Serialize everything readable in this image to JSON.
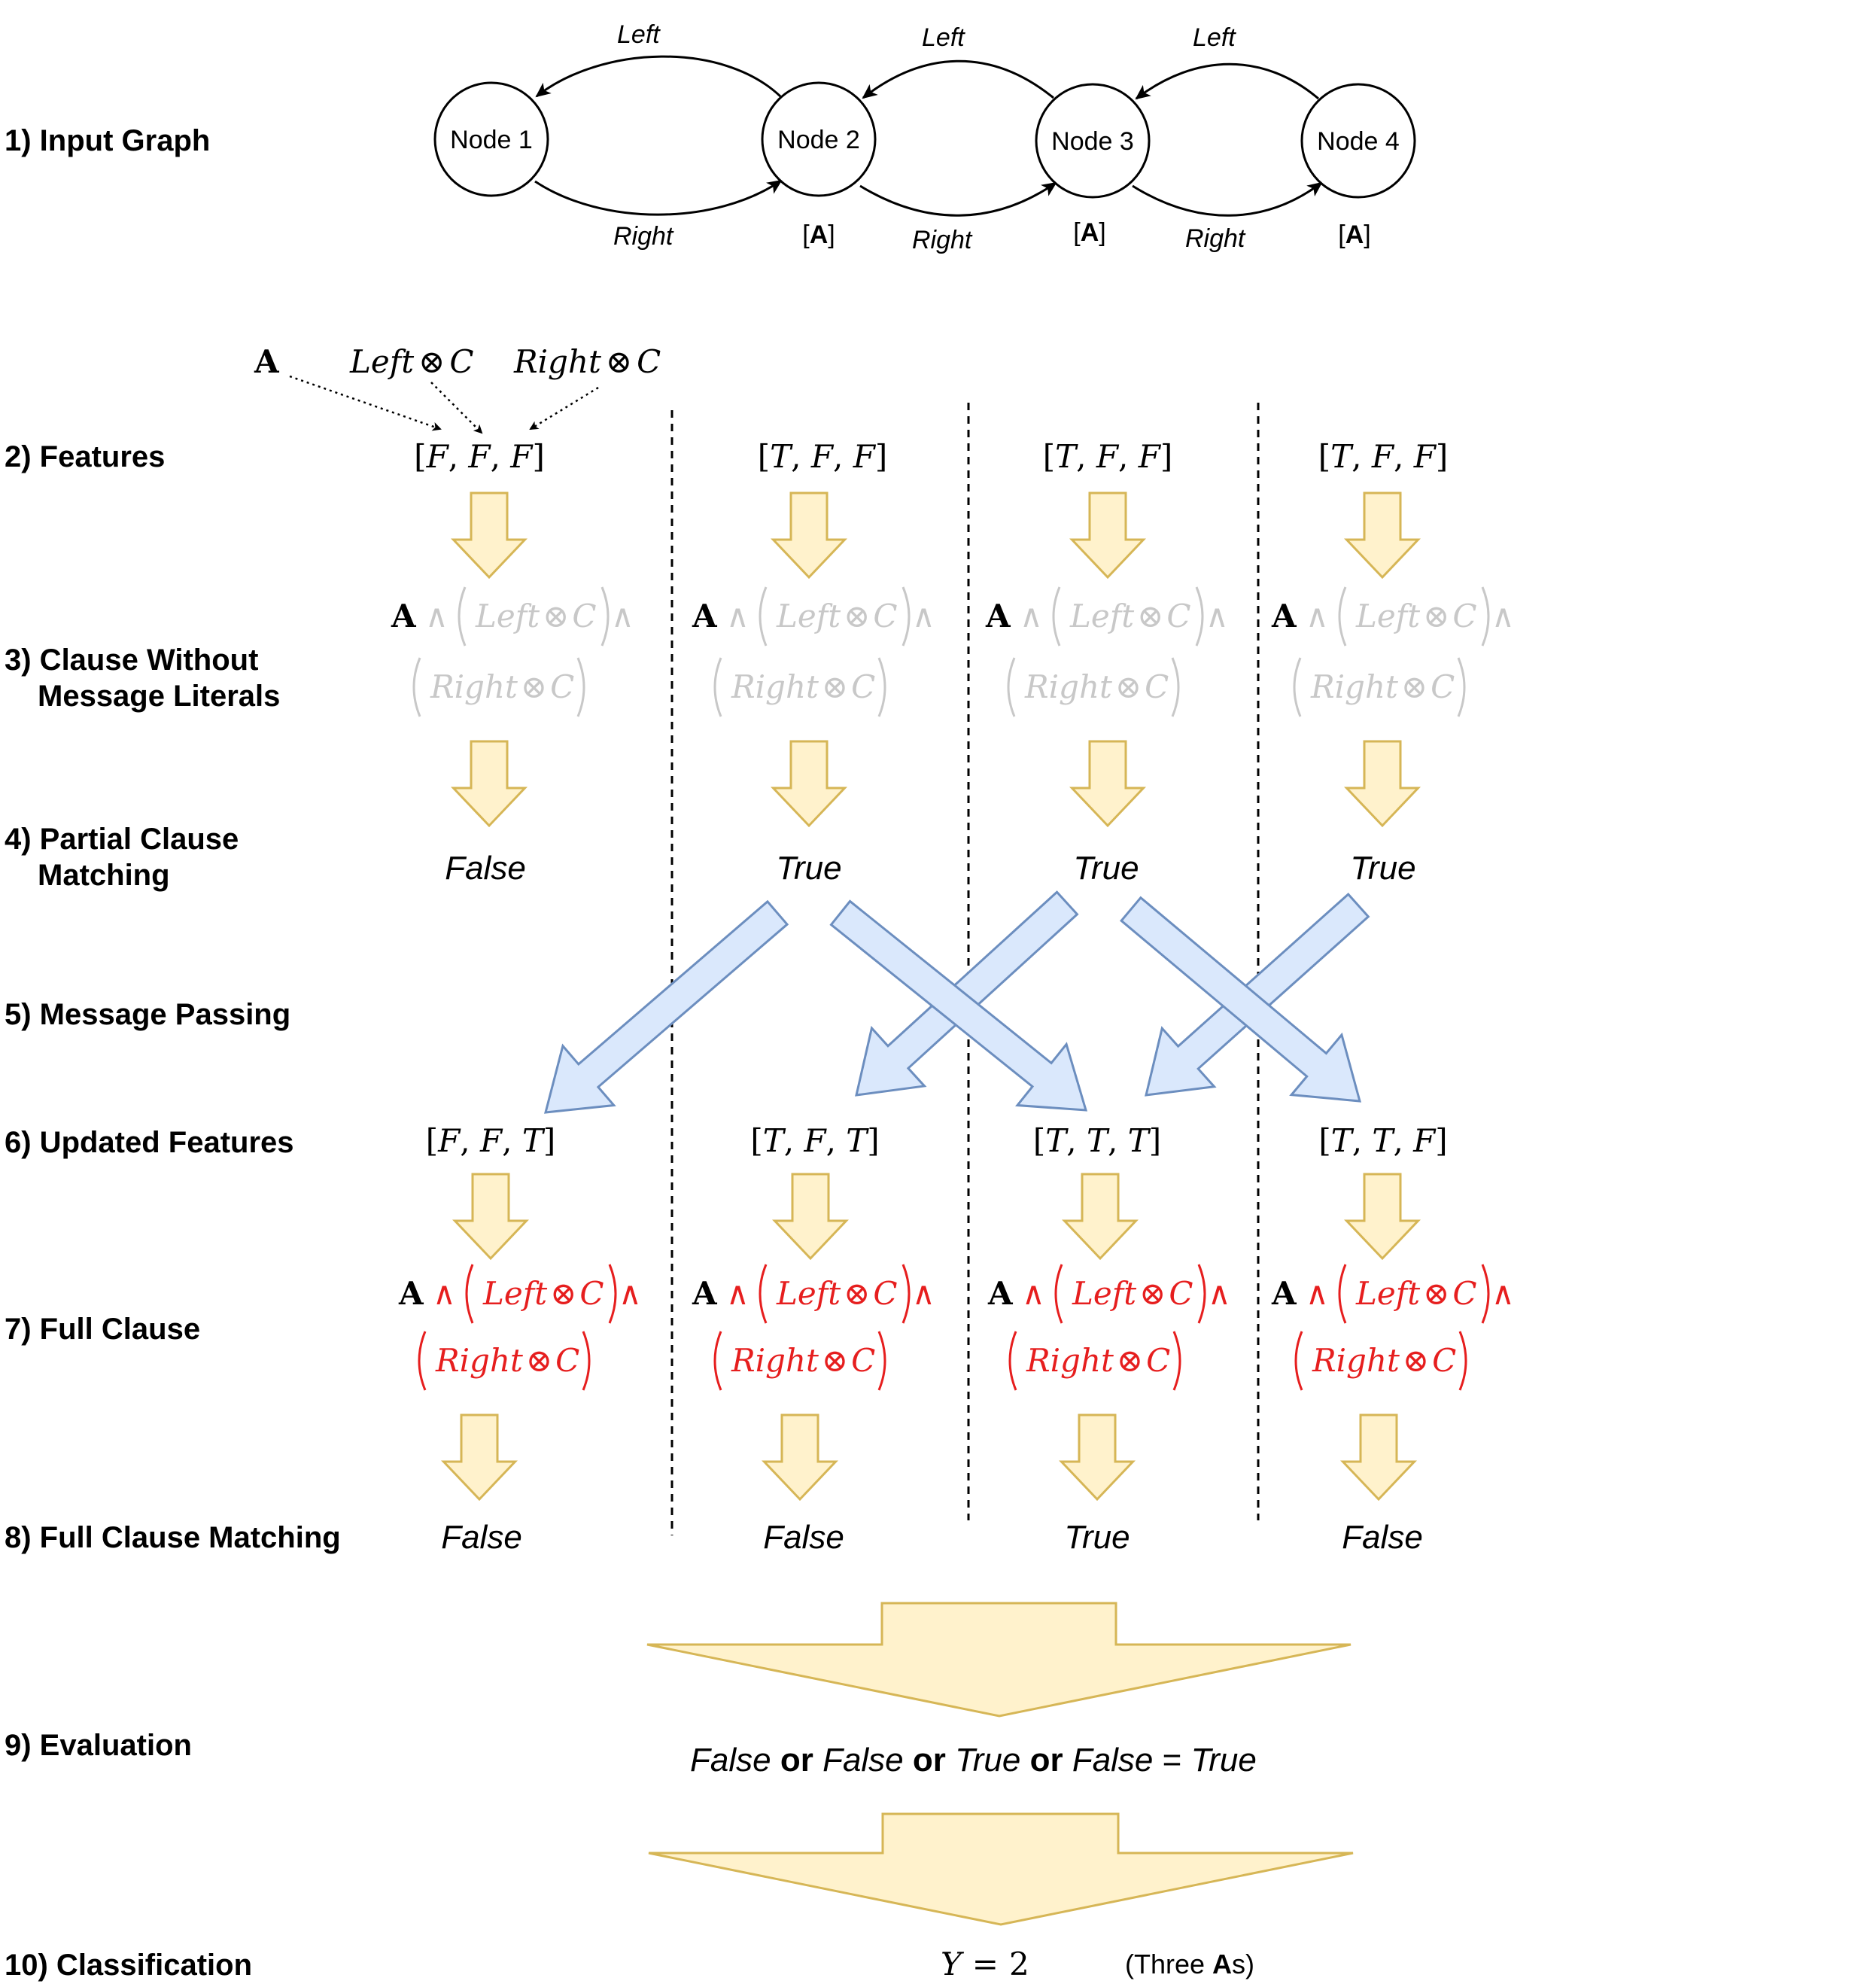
{
  "stages": [
    {
      "line1": "1) Input Graph",
      "line2": ""
    },
    {
      "line1": "2) Features",
      "line2": ""
    },
    {
      "line1": "3) Clause Without",
      "line2": "Message Literals"
    },
    {
      "line1": "4) Partial Clause",
      "line2": "Matching"
    },
    {
      "line1": "5) Message Passing",
      "line2": ""
    },
    {
      "line1": "6) Updated Features",
      "line2": ""
    },
    {
      "line1": "7) Full Clause",
      "line2": ""
    },
    {
      "line1": "8) Full Clause Matching",
      "line2": ""
    },
    {
      "line1": "9) Evaluation",
      "line2": ""
    },
    {
      "line1": "10) Classification",
      "line2": ""
    }
  ],
  "graph": {
    "nodes": [
      {
        "label": "Node 1",
        "attribute": ""
      },
      {
        "label": "Node 2",
        "attribute": "A"
      },
      {
        "label": "Node 3",
        "attribute": "A"
      },
      {
        "label": "Node 4",
        "attribute": "A"
      }
    ],
    "left_label": "Left",
    "right_label": "Right"
  },
  "feature_legend": {
    "a": "A",
    "left": "Left",
    "right": "Right",
    "otimes": "⊗",
    "c": "C"
  },
  "clause": {
    "a": "A",
    "and": "∧",
    "left": "Left",
    "right": "Right",
    "otimes": "⊗",
    "c": "C"
  },
  "columns": [
    {
      "features": [
        "F",
        "F",
        "F"
      ],
      "partial_match": "False",
      "updated_features": [
        "F",
        "F",
        "T"
      ],
      "full_match": "False"
    },
    {
      "features": [
        "T",
        "F",
        "F"
      ],
      "partial_match": "True",
      "updated_features": [
        "T",
        "F",
        "T"
      ],
      "full_match": "False"
    },
    {
      "features": [
        "T",
        "F",
        "F"
      ],
      "partial_match": "True",
      "updated_features": [
        "T",
        "T",
        "T"
      ],
      "full_match": "True"
    },
    {
      "features": [
        "T",
        "F",
        "F"
      ],
      "partial_match": "True",
      "updated_features": [
        "T",
        "T",
        "F"
      ],
      "full_match": "False"
    }
  ],
  "evaluation": {
    "terms": [
      "False",
      "False",
      "True",
      "False"
    ],
    "or_word": "or",
    "equals": "=",
    "result": "True"
  },
  "classification": {
    "y": "Y",
    "equals": "=",
    "value": "2",
    "note_open": "(Three ",
    "note_bold": "A",
    "note_close": "s)"
  },
  "colors": {
    "yellow_fill": "#fff2cc",
    "yellow_stroke": "#d6b656",
    "blue_fill": "#dae8fc",
    "blue_stroke": "#6c8ebf",
    "inactive_gray": "#c8c8c8",
    "active_red": "#e61e1e"
  }
}
